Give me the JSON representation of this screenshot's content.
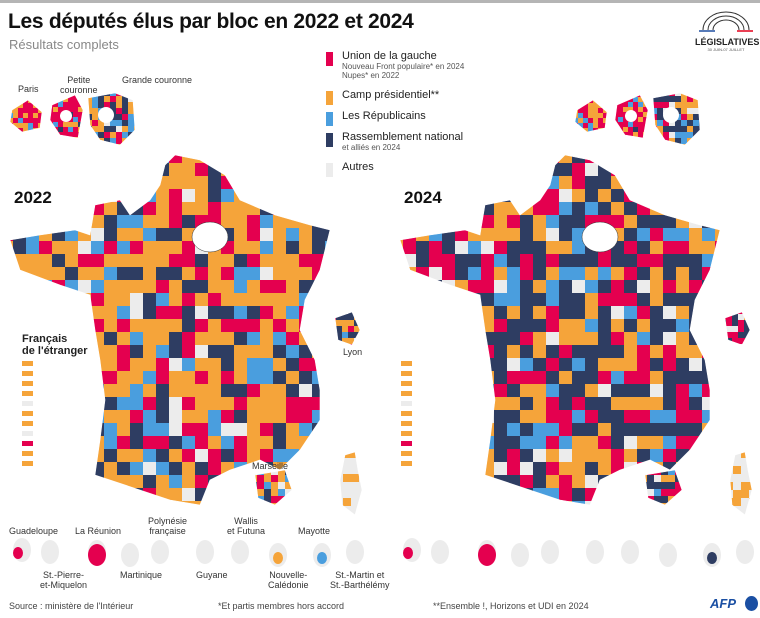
{
  "header": {
    "title": "Les députés élus par bloc en 2022 et 2024",
    "subtitle": "Résultats complets"
  },
  "logo": {
    "name": "LÉGISLATIVES",
    "dates": "30 JUIN-07 JUILLET"
  },
  "colors": {
    "gauche": "#e4004f",
    "presidentiel": "#f5a43a",
    "republicains": "#4a9ede",
    "rn": "#2e3d62",
    "autres": "#ececec"
  },
  "legend": [
    {
      "key": "gauche",
      "label": "Union de la gauche",
      "notes": [
        "Nouveau Front populaire* en 2024",
        "Nupes* en 2022"
      ]
    },
    {
      "key": "presidentiel",
      "label": "Camp présidentiel**",
      "notes": []
    },
    {
      "key": "republicains",
      "label": "Les Républicains",
      "notes": []
    },
    {
      "key": "rn",
      "label": "Rassemblement national",
      "notes": [
        "et alliés en 2024"
      ]
    },
    {
      "key": "autres",
      "label": "Autres",
      "notes": []
    }
  ],
  "maps": [
    {
      "year": "2022",
      "mix": {
        "gauche": 0.17,
        "presidentiel": 0.4,
        "republicains": 0.16,
        "rn": 0.22,
        "autres": 0.05
      },
      "expat": [
        "presidentiel",
        "presidentiel",
        "presidentiel",
        "presidentiel",
        "autres",
        "presidentiel",
        "presidentiel",
        "autres",
        "gauche",
        "presidentiel",
        "presidentiel"
      ]
    },
    {
      "year": "2024",
      "mix": {
        "gauche": 0.2,
        "presidentiel": 0.24,
        "republicains": 0.1,
        "rn": 0.4,
        "autres": 0.06
      },
      "expat": [
        "presidentiel",
        "presidentiel",
        "presidentiel",
        "presidentiel",
        "autres",
        "presidentiel",
        "presidentiel",
        "presidentiel",
        "gauche",
        "presidentiel",
        "presidentiel"
      ]
    }
  ],
  "idf_labels": {
    "paris": "Paris",
    "petite": "Petite\ncouronne",
    "grande": "Grande couronne"
  },
  "city_labels": {
    "lyon": "Lyon",
    "marseille": "Marseille"
  },
  "expat_title": "Français\nde l'étranger",
  "overseas": {
    "top": [
      "Guadeloupe",
      "La Réunion",
      "Polynésie\nfrançaise",
      "Wallis\net Futuna",
      "Mayotte"
    ],
    "bottom": [
      "St.-Pierre-\net-Miquelon",
      "Martinique",
      "Guyane",
      "Nouvelle-\nCalédonie",
      "St.-Martin et\nSt.-Barthélémy"
    ]
  },
  "footer": {
    "source": "Source : ministère de l'Intérieur",
    "note1": "*Et partis membres hors accord",
    "note2": "**Ensemble !, Horizons et UDI en 2024",
    "brand": "AFP"
  }
}
